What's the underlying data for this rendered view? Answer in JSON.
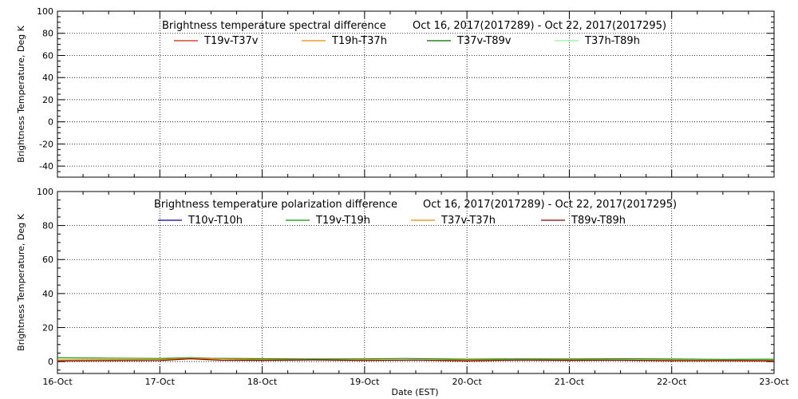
{
  "xaxis": {
    "label": "Date (EST)",
    "ticks": [
      "16-Oct",
      "17-Oct",
      "18-Oct",
      "19-Oct",
      "20-Oct",
      "21-Oct",
      "22-Oct",
      "23-Oct"
    ]
  },
  "chart_data": [
    {
      "type": "line",
      "title": "Brightness temperature spectral difference",
      "date_range": "Oct 16, 2017(2017289) - Oct 22, 2017(2017295)",
      "ylabel": "Brightness Temperature, Deg K",
      "ylim": [
        -50,
        100
      ],
      "yticks": [
        -40,
        -20,
        0,
        20,
        40,
        60,
        80,
        100
      ],
      "xlim": [
        "16-Oct",
        "23-Oct"
      ],
      "grid": "dotted vertical at each day",
      "legend_position": "top",
      "series": [
        {
          "name": "T19v-T37v",
          "color": "#cc2200",
          "x": [],
          "values": []
        },
        {
          "name": "T19h-T37h",
          "color": "#ee8800",
          "x": [],
          "values": []
        },
        {
          "name": "T37v-T89v",
          "color": "#006600",
          "x": [],
          "values": []
        },
        {
          "name": "T37h-T89h",
          "color": "#99ee99",
          "x": [],
          "values": []
        }
      ]
    },
    {
      "type": "line",
      "title": "Brightness temperature polarization difference",
      "date_range": "Oct 16, 2017(2017289) - Oct 22, 2017(2017295)",
      "ylabel": "Brightness Temperature, Deg K",
      "ylim": [
        -7,
        100
      ],
      "yticks": [
        0,
        20,
        40,
        60,
        80,
        100
      ],
      "xlim": [
        "16-Oct",
        "23-Oct"
      ],
      "grid": "dotted vertical at each day",
      "legend_position": "top",
      "series": [
        {
          "name": "T10v-T10h",
          "color": "#000099",
          "x": [],
          "values": []
        },
        {
          "name": "T19v-T19h",
          "color": "#009900",
          "x": [
            "16-Oct",
            "16.5-Oct",
            "17-Oct",
            "17.3-Oct",
            "17.5-Oct",
            "18-Oct",
            "18.5-Oct",
            "19-Oct",
            "19.4-Oct",
            "20-Oct",
            "20.5-Oct",
            "21-Oct",
            "21.5-Oct",
            "22-Oct",
            "22.5-Oct",
            "23-Oct"
          ],
          "values": [
            2.2,
            2.0,
            1.8,
            2.3,
            1.9,
            1.7,
            1.5,
            1.6,
            1.8,
            1.4,
            1.6,
            1.5,
            1.7,
            1.5,
            1.3,
            1.4
          ]
        },
        {
          "name": "T37v-T37h",
          "color": "#ee8800",
          "x": [
            "16-Oct",
            "17-Oct",
            "17.3-Oct",
            "18-Oct",
            "19-Oct",
            "20-Oct",
            "21-Oct",
            "22-Oct",
            "23-Oct"
          ],
          "values": [
            1.0,
            1.2,
            1.9,
            1.1,
            1.0,
            0.9,
            1.0,
            0.8,
            0.7
          ]
        },
        {
          "name": "T89v-T89h",
          "color": "#880000",
          "x": [
            "16-Oct",
            "16.5-Oct",
            "17-Oct",
            "17.3-Oct",
            "17.6-Oct",
            "18-Oct",
            "18.5-Oct",
            "19-Oct",
            "19.5-Oct",
            "20-Oct",
            "20.5-Oct",
            "21-Oct",
            "21.5-Oct",
            "22-Oct",
            "22.5-Oct",
            "23-Oct"
          ],
          "values": [
            0.3,
            0.5,
            0.6,
            1.6,
            0.8,
            0.7,
            1.0,
            0.6,
            0.9,
            0.3,
            0.9,
            0.7,
            0.8,
            0.4,
            0.5,
            0.3
          ]
        }
      ]
    }
  ]
}
